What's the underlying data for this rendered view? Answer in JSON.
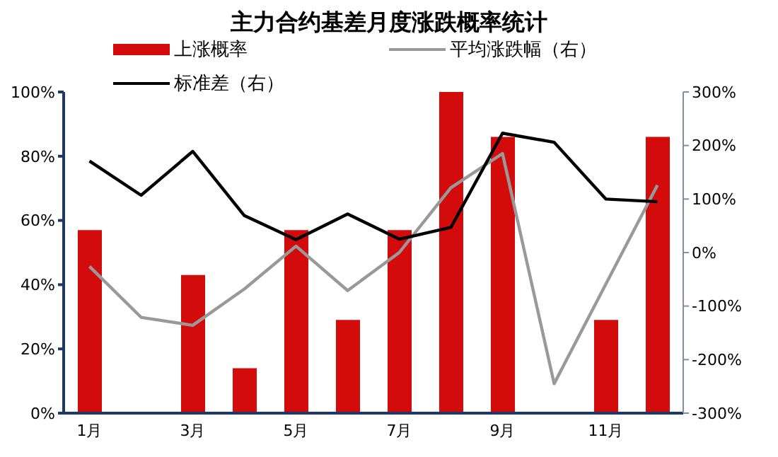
{
  "chart_data": {
    "type": "bar",
    "title": "主力合约基差月度涨跌概率统计",
    "categories": [
      "1月",
      null,
      "3月",
      null,
      "5月",
      null,
      "7月",
      null,
      "9月",
      null,
      "11月",
      null
    ],
    "series": [
      {
        "name": "上涨概率",
        "color": "#d40b0b",
        "values": [
          57,
          null,
          43,
          14,
          57,
          29,
          57,
          100,
          86,
          null,
          29,
          86
        ]
      },
      {
        "name": "平均涨跌幅（右）",
        "type": "line",
        "axis": "y2",
        "color": "#999999",
        "values": [
          -26,
          -121,
          -136,
          -68,
          12,
          -71,
          0,
          121,
          185,
          -245,
          -59,
          126
        ]
      },
      {
        "name": "标准差（右）",
        "type": "line",
        "axis": "y2",
        "color": "#000000",
        "values": [
          171,
          107,
          189,
          69,
          24,
          72,
          25,
          47,
          223,
          206,
          100,
          95
        ]
      }
    ],
    "ylim": [
      0,
      100
    ],
    "yticks": [
      {
        "value": 0,
        "label": "0%"
      },
      {
        "value": 20,
        "label": "20%"
      },
      {
        "value": 40,
        "label": "40%"
      },
      {
        "value": 60,
        "label": "60%"
      },
      {
        "value": 80,
        "label": "80%"
      },
      {
        "value": 100,
        "label": "100%"
      }
    ],
    "y2lim": [
      -300,
      300
    ],
    "y2ticks": [
      {
        "value": -300,
        "label": "-300%"
      },
      {
        "value": -200,
        "label": "-200%"
      },
      {
        "value": -100,
        "label": "-100%"
      },
      {
        "value": 0,
        "label": "0%"
      },
      {
        "value": 100,
        "label": "100%"
      },
      {
        "value": 200,
        "label": "200%"
      },
      {
        "value": 300,
        "label": "300%"
      }
    ],
    "legend": "top",
    "grid": false,
    "marker": "none",
    "line_style": "solid"
  }
}
